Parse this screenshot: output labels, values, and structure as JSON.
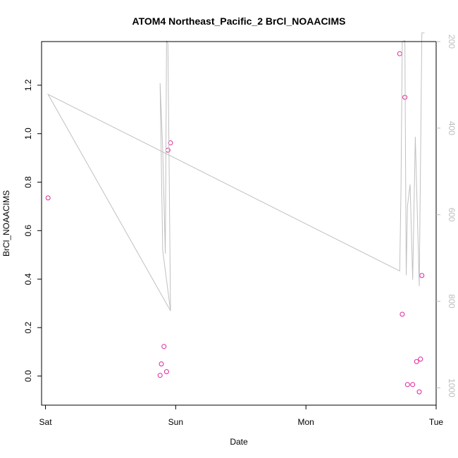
{
  "chart_data": {
    "type": "scatter",
    "title": "ATOM4 Northeast_Pacific_2 BrCl_NOAACIMS",
    "xlabel": "Date",
    "ylabel": "BrCl_NOAACIMS",
    "x_ticks": [
      "Sat",
      "Sun",
      "Mon",
      "Tue"
    ],
    "xlim": [
      -0.03,
      3.0
    ],
    "ylim": [
      -0.12,
      1.38
    ],
    "y_ticks": [
      "0.0",
      "0.2",
      "0.4",
      "0.6",
      "0.8",
      "1.0",
      "1.2"
    ],
    "y2_ticks": [
      "200",
      "400",
      "600",
      "800",
      "1000"
    ],
    "y2lim": [
      1040,
      200
    ],
    "grid": false,
    "series": [
      {
        "kind": "points",
        "color": "#e0249b",
        "x": [
          0.02,
          0.88,
          0.89,
          0.91,
          0.93,
          0.94,
          0.96,
          2.72,
          2.74,
          2.76,
          2.78,
          2.82,
          2.85,
          2.87,
          2.88,
          2.89
        ],
        "y": [
          0.735,
          0.003,
          0.05,
          0.122,
          0.018,
          0.932,
          0.962,
          1.33,
          0.255,
          1.15,
          -0.035,
          -0.035,
          0.06,
          -0.065,
          0.07,
          0.415
        ]
      },
      {
        "kind": "line",
        "color": "#c0c0c0",
        "axis": "right",
        "x": [
          0.02,
          0.96,
          0.9,
          0.88,
          0.9,
          0.92,
          0.93,
          0.94,
          0.95,
          0.96,
          0.02,
          2.72,
          2.73,
          2.74,
          2.76,
          2.77,
          2.78,
          2.8,
          2.82,
          2.84,
          2.87,
          2.89,
          2.91
        ],
        "y": [
          322,
          822,
          682,
          296,
          448,
          690,
          198,
          205,
          500,
          822,
          322,
          730,
          540,
          200,
          198,
          740,
          580,
          530,
          750,
          420,
          765,
          180,
          180
        ]
      }
    ]
  }
}
